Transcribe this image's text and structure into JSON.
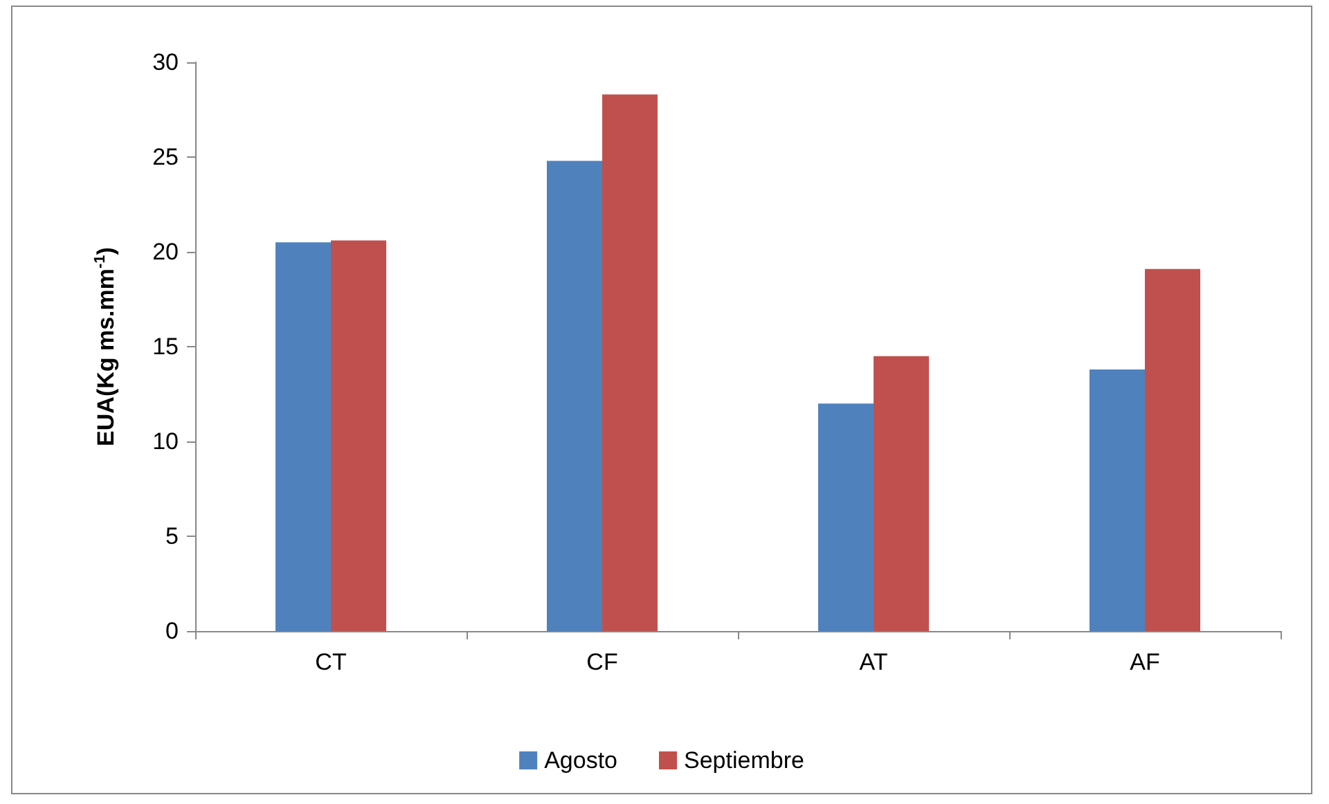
{
  "chart_data": {
    "type": "bar",
    "ylabel": "EUA(Kg ms.mm$^{-1}$)",
    "categories": [
      "CT",
      "CF",
      "AT",
      "AF"
    ],
    "series": [
      {
        "name": "Agosto",
        "color": "#4f81bd",
        "values": [
          20.5,
          24.8,
          12.0,
          13.8
        ]
      },
      {
        "name": "Septiembre",
        "color": "#c0504d",
        "values": [
          20.6,
          28.3,
          14.5,
          19.1
        ]
      }
    ],
    "ylim": [
      0,
      30
    ],
    "yticks": [
      0,
      5,
      10,
      15,
      20,
      25,
      30
    ],
    "grid": false,
    "legend": "bottom"
  }
}
